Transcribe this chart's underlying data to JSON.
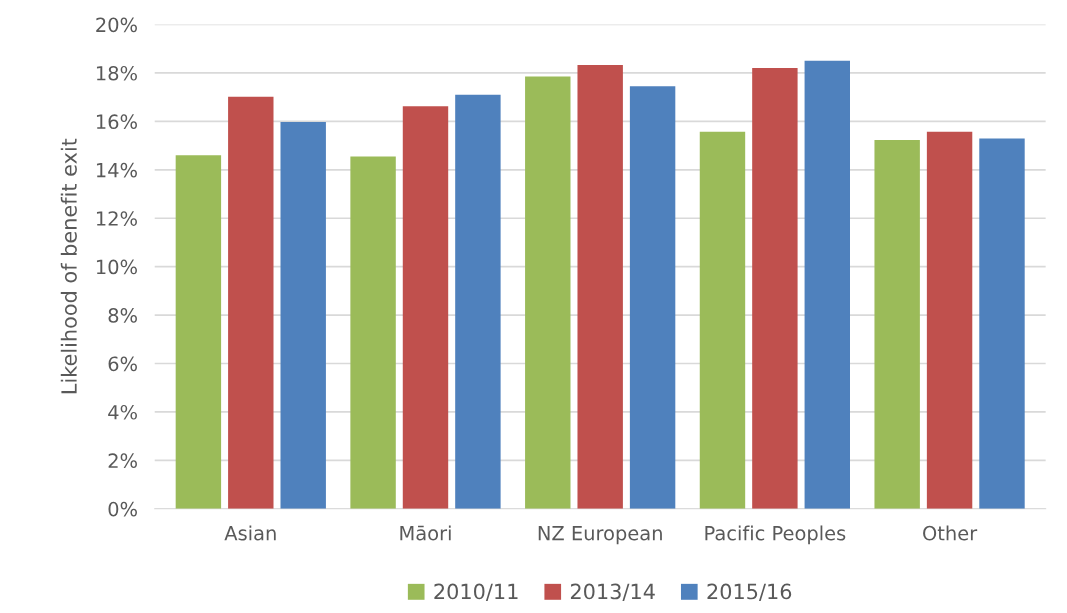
{
  "chart_data": {
    "type": "bar",
    "ylabel": "Likelihood of benefit exit",
    "categories": [
      "Asian",
      "Māori",
      "NZ European",
      "Pacific Peoples",
      "Other"
    ],
    "series": [
      {
        "name": "2010/11",
        "color": "#9bbb59",
        "values": [
          14.6,
          14.55,
          17.85,
          15.57,
          15.23
        ]
      },
      {
        "name": "2013/14",
        "color": "#c0504d",
        "values": [
          17.02,
          16.62,
          18.33,
          18.2,
          15.57
        ]
      },
      {
        "name": "2015/16",
        "color": "#4f81bd",
        "values": [
          15.97,
          17.1,
          17.45,
          18.5,
          15.29
        ]
      }
    ],
    "ylim": [
      0,
      20
    ],
    "yticks": [
      {
        "value": 0,
        "label": "0%"
      },
      {
        "value": 2,
        "label": "2%"
      },
      {
        "value": 4,
        "label": "4%"
      },
      {
        "value": 6,
        "label": "6%"
      },
      {
        "value": 8,
        "label": "8%"
      },
      {
        "value": 10,
        "label": "10%"
      },
      {
        "value": 12,
        "label": "12%"
      },
      {
        "value": 14,
        "label": "14%"
      },
      {
        "value": 16,
        "label": "16%"
      },
      {
        "value": 18,
        "label": "18%"
      },
      {
        "value": 20,
        "label": "20%"
      }
    ],
    "grid": "y",
    "legend": "bottom"
  }
}
